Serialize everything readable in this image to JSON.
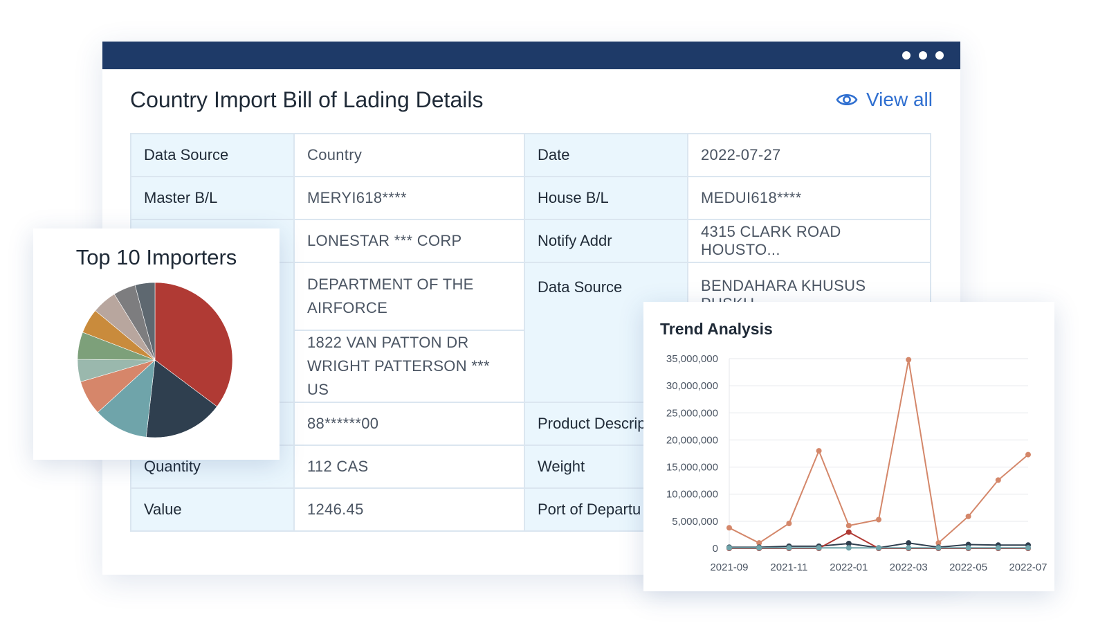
{
  "main_card": {
    "title": "Country Import Bill of Lading Details",
    "view_all_label": "View all",
    "rows": [
      {
        "label1": "Data Source",
        "value1": "Country",
        "label2": "Date",
        "value2": "2022-07-27"
      },
      {
        "label1": "Master B/L",
        "value1": "MERYI618****",
        "label2": "House B/L",
        "value2": "MEDUI618****"
      },
      {
        "value1": "LONESTAR *** CORP",
        "label2": "Notify Addr",
        "value2": "4315 CLARK ROAD HOUSTO..."
      },
      {
        "value1_line1": "DEPARTMENT OF THE",
        "value1_line2": "AIRFORCE",
        "label2": "Data Source",
        "value2": "BENDAHARA KHUSUS PUSKU"
      },
      {
        "value1_line1": "1822 VAN PATTON DR",
        "value1_line2": "WRIGHT PATTERSON   *** US"
      },
      {
        "value1": "88******00",
        "label2": "Product Descrip"
      },
      {
        "label1": "Quantity",
        "value1": "112 CAS",
        "label2": "Weight"
      },
      {
        "label1": "Value",
        "value1": "1246.45",
        "label2": "Port of Departu"
      }
    ]
  },
  "pie_card": {
    "title": "Top 10 Importers",
    "chart_data": {
      "type": "pie",
      "values": [
        34,
        16,
        11,
        7,
        4.5,
        5.5,
        5,
        5,
        4.5,
        4
      ],
      "colors": [
        "#b03a34",
        "#2f3f4f",
        "#6fa4aa",
        "#d6866a",
        "#9ab8ad",
        "#7da07a",
        "#c98b3c",
        "#b8a69e",
        "#7d7d7f",
        "#5e6870"
      ]
    }
  },
  "trend_card": {
    "title": "Trend Analysis",
    "chart_data": {
      "type": "line",
      "x": [
        "2021-09",
        "2021-10",
        "2021-11",
        "2021-12",
        "2022-01",
        "2022-02",
        "2022-03",
        "2022-04",
        "2022-05",
        "2022-06",
        "2022-07"
      ],
      "x_tick_labels": [
        "2021-09",
        "2021-11",
        "2022-01",
        "2022-03",
        "2022-05",
        "2022-07"
      ],
      "y_tick_labels": [
        "0",
        "5,000,000",
        "10,000,000",
        "15,000,000",
        "20,000,000",
        "25,000,000",
        "30,000,000",
        "35,000,000"
      ],
      "ylim": [
        0,
        35000000
      ],
      "grid": true,
      "series": [
        {
          "color": "#d4876a",
          "values": [
            3800000,
            1000000,
            4600000,
            18000000,
            4200000,
            5300000,
            34800000,
            1000000,
            5900000,
            12600000,
            17300000
          ]
        },
        {
          "color": "#2f3f4f",
          "values": [
            200000,
            200000,
            400000,
            400000,
            900000,
            100000,
            1000000,
            200000,
            700000,
            600000,
            600000
          ]
        },
        {
          "color": "#b03a34",
          "values": [
            0,
            0,
            0,
            0,
            3000000,
            0,
            0,
            0,
            0,
            0,
            0
          ]
        },
        {
          "color": "#6fa4aa",
          "values": [
            100000,
            100000,
            100000,
            100000,
            100000,
            100000,
            100000,
            100000,
            100000,
            100000,
            100000
          ]
        }
      ]
    }
  }
}
